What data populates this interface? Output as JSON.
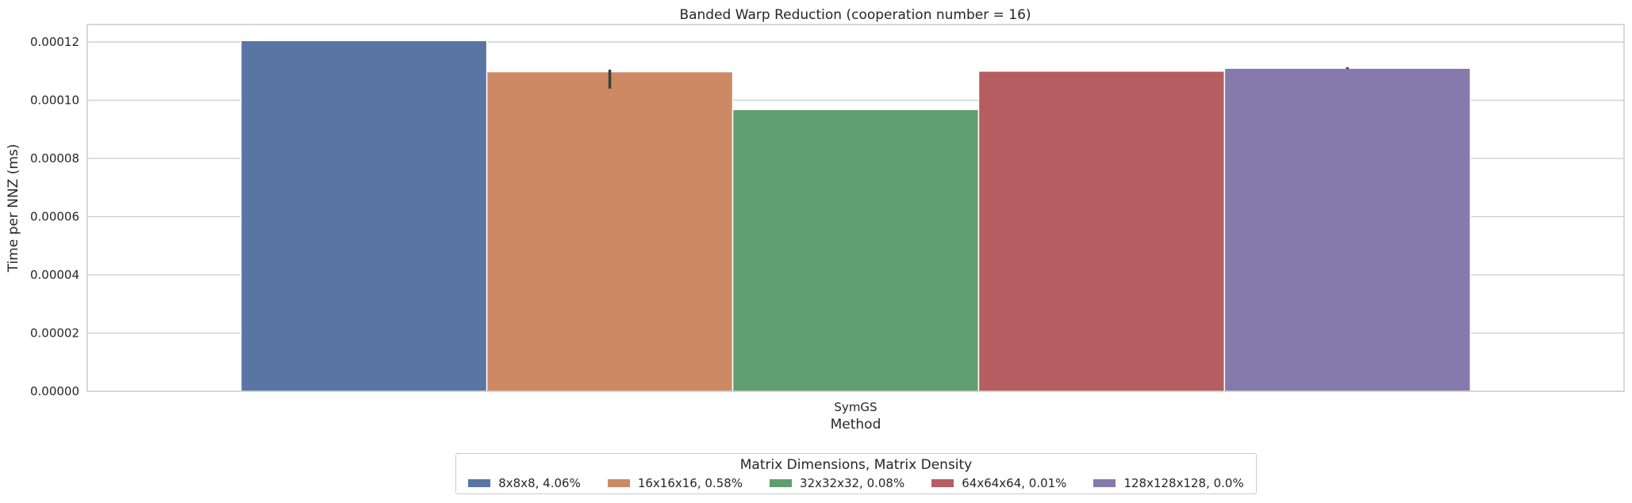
{
  "chart_data": {
    "type": "bar",
    "title": "Banded Warp Reduction (cooperation number = 16)",
    "xlabel": "Method",
    "ylabel": "Time per NNZ (ms)",
    "categories": [
      "SymGS"
    ],
    "ylim": [
      0,
      0.000126
    ],
    "yticks": [
      "0.00000",
      "0.00002",
      "0.00004",
      "0.00006",
      "0.00008",
      "0.00010",
      "0.00012"
    ],
    "ytick_values": [
      0,
      2e-05,
      4e-05,
      6e-05,
      8e-05,
      0.0001,
      0.00012
    ],
    "grid": true,
    "legend_title": "Matrix Dimensions, Matrix Density",
    "legend_placement": "bottom-center",
    "series": [
      {
        "name": "8x8x8, 4.06%",
        "color": "#5875a4",
        "values": [
          0.0001205
        ]
      },
      {
        "name": "16x16x16, 0.58%",
        "color": "#cc8963",
        "values": [
          0.0001098
        ],
        "error": [
          0.000104,
          0.0001105
        ]
      },
      {
        "name": "32x32x32, 0.08%",
        "color": "#5f9e6e",
        "values": [
          9.68e-05
        ]
      },
      {
        "name": "64x64x64, 0.01%",
        "color": "#b55d60",
        "values": [
          0.00011
        ]
      },
      {
        "name": "128x128x128, 0.0%",
        "color": "#857aab",
        "values": [
          0.000111
        ],
        "error": [
          0.0001107,
          0.0001113
        ]
      }
    ]
  }
}
